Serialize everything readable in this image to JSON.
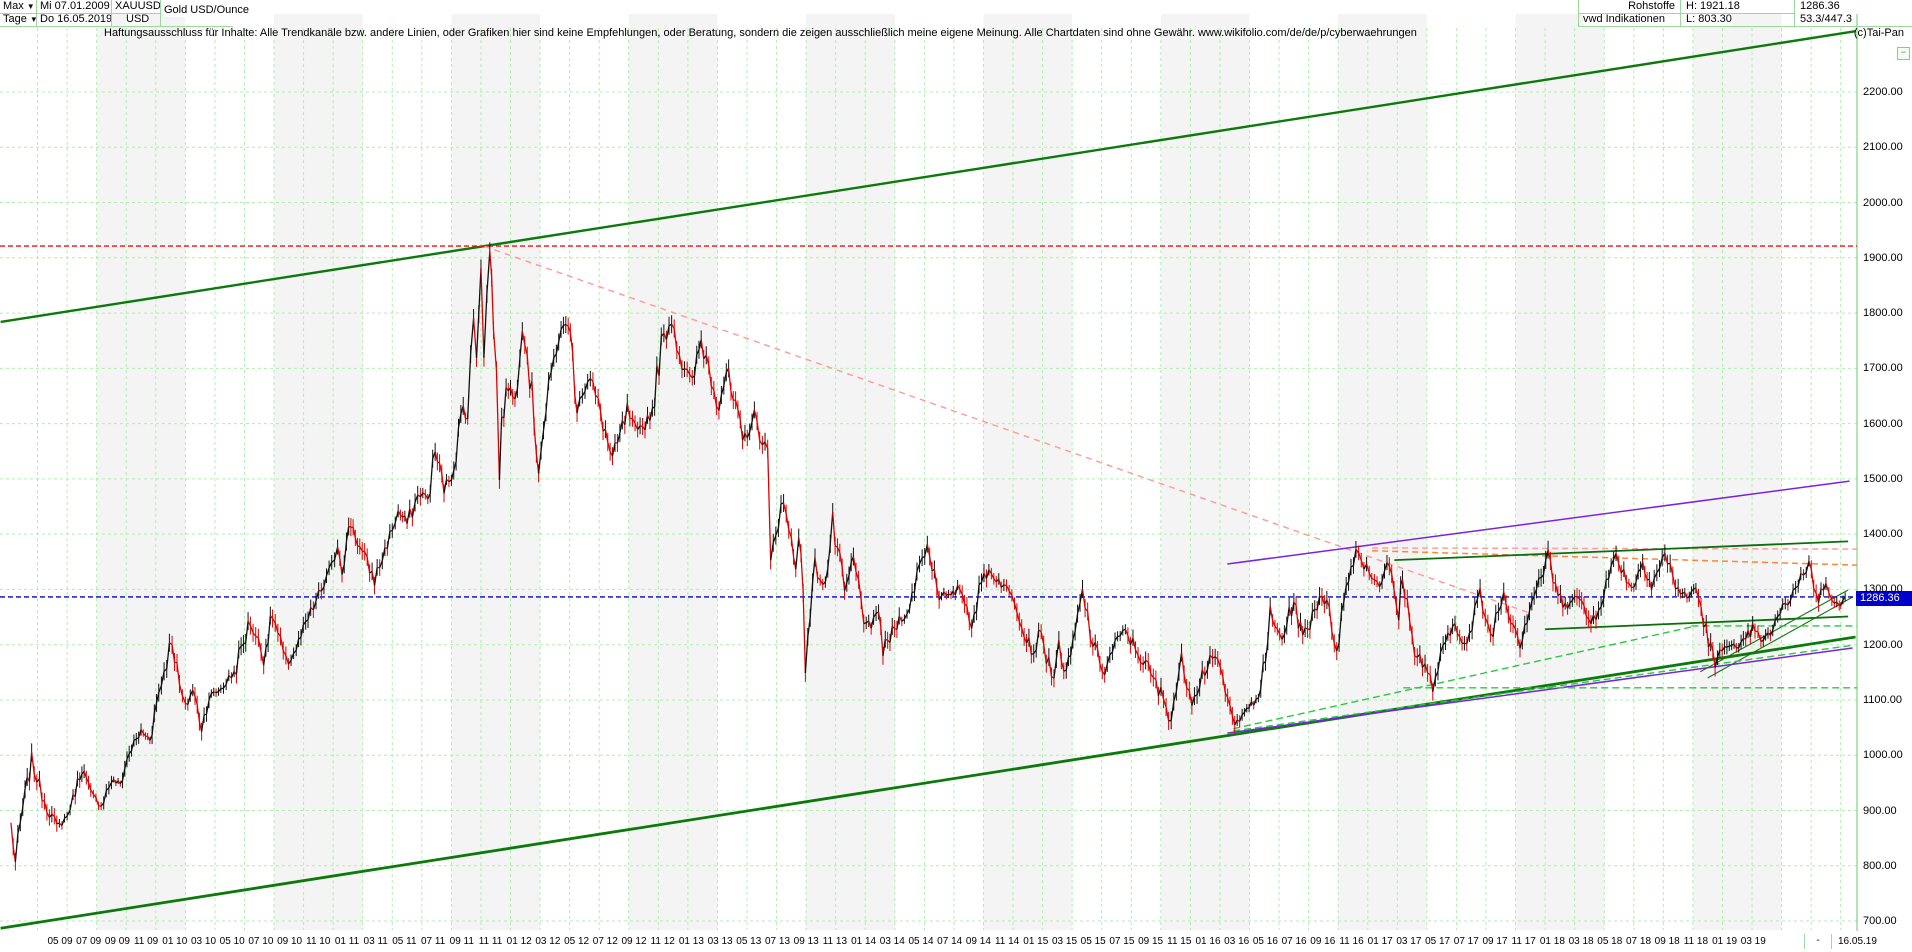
{
  "header": {
    "left": {
      "range": "Max",
      "period": "Tage",
      "date_from": "Mi 07.01.2009",
      "date_to": "Do 16.05.2019",
      "symbol": "XAUUSD",
      "currency": "USD",
      "title": "Gold USD/Ounce"
    },
    "right": {
      "category": "Rohstoffe",
      "source": "vwd Indikationen",
      "high": "H: 1921.18",
      "low": "L: 803.30",
      "last": "1286.36",
      "stats": "53.3/447.3",
      "copyright": "(c)Tai-Pan",
      "legend_toggle": "−"
    }
  },
  "disclaimer": "Haftungsausschluss für Inhalte: Alle Trendkanäle bzw. andere Linien, oder Grafiken hier sind keine Empfehlungen, oder Beratung, sondern die zeigen ausschließlich meine eigene Meinung. Alle Chartdaten sind ohne Gewähr.   www.wikifolio.com/de/de/p/cyberwaehrungen",
  "price_badge": "1286.36",
  "axis": {
    "y_labels": [
      "2200.00",
      "2100.00",
      "2000.00",
      "1900.00",
      "1800.00",
      "1700.00",
      "1600.00",
      "1500.00",
      "1400.00",
      "1300.00",
      "1200.00",
      "1100.00",
      "1000.00",
      "900.00",
      "800.00",
      "700.00"
    ],
    "x_labels": [
      "05 09",
      "07 09",
      "09 09",
      "11 09",
      "01 10",
      "03 10",
      "05 10",
      "07 10",
      "09 10",
      "11 10",
      "01 11",
      "03 11",
      "05 11",
      "07 11",
      "09 11",
      "11 11",
      "01 12",
      "03 12",
      "05 12",
      "07 12",
      "09 12",
      "11 12",
      "01 13",
      "03 13",
      "05 13",
      "07 13",
      "09 13",
      "11 13",
      "01 14",
      "03 14",
      "05 14",
      "07 14",
      "09 14",
      "11 14",
      "01 15",
      "03 15",
      "05 15",
      "07 15",
      "09 15",
      "11 15",
      "01 16",
      "03 16",
      "05 16",
      "07 16",
      "09 16",
      "11 16",
      "01 17",
      "03 17",
      "05 17",
      "07 17",
      "09 17",
      "11 17",
      "01 18",
      "03 18",
      "05 18",
      "07 18",
      "09 18",
      "11 18",
      "01 19",
      "03 19"
    ],
    "minus_label": "-",
    "end_date_label": "16.05.19"
  },
  "chart_data": {
    "type": "line",
    "title": "Gold USD/Ounce",
    "x_unit": "months since Jan 2009",
    "x_range_months": [
      0,
      125.1
    ],
    "ylim": [
      700,
      2200
    ],
    "grid": true,
    "colors": {
      "up": "#111111",
      "down": "#dd0000",
      "grid": "#b4ecb4",
      "axis": "#7fd47f",
      "channel_green": "#0b7a0b",
      "bright_green_dash": "#28c93f",
      "dark_green": "#0a6e0a",
      "purple": "#7a22e0",
      "pink": "#ff9d9d",
      "orange": "#ff8638",
      "red_line": "#ee1111",
      "blue_line": "#0000cc",
      "stripe": "#f4f4f4"
    },
    "horizontal_lines": [
      {
        "name": "all-time-high",
        "price": 1921.18,
        "color": "#ee1111",
        "dash": "5,3",
        "width": 1.4
      },
      {
        "name": "last-price",
        "price": 1286.36,
        "color": "#0000cc",
        "dash": "5,3",
        "width": 1.4
      }
    ],
    "trend_lines": [
      {
        "name": "channel-upper",
        "m1": -0.5,
        "p1": 1784,
        "m2": 125.0,
        "p2": 2310,
        "color": "#0b7a0b",
        "width": 2.4,
        "dash": null
      },
      {
        "name": "channel-lower",
        "m1": -0.5,
        "p1": 687,
        "m2": 125.0,
        "p2": 1214,
        "color": "#0b7a0b",
        "width": 2.8,
        "dash": null
      },
      {
        "name": "peak-decline-dashed",
        "m1": 32.2,
        "p1": 1921,
        "m2": 103.0,
        "p2": 1257,
        "color": "#ff9d9d",
        "width": 1.5,
        "dash": "6,5"
      },
      {
        "name": "resistance-pink-flat",
        "m1": 92.3,
        "p1": 1375,
        "m2": 125.1,
        "p2": 1373,
        "color": "#ff9d9d",
        "width": 1.5,
        "dash": "6,4"
      },
      {
        "name": "resistance-orange",
        "m1": 92.3,
        "p1": 1370,
        "m2": 125.1,
        "p2": 1344,
        "color": "#ff8638",
        "width": 1.5,
        "dash": "6,4"
      },
      {
        "name": "purple-channel-upper",
        "m1": 82.5,
        "p1": 1346,
        "m2": 124.6,
        "p2": 1496,
        "color": "#7a22e0",
        "width": 1.5,
        "dash": null
      },
      {
        "name": "purple-channel-lower",
        "m1": 82.5,
        "p1": 1040,
        "m2": 124.8,
        "p2": 1194,
        "color": "#7a22e0",
        "width": 1.5,
        "dash": null
      },
      {
        "name": "green-resistance-2018",
        "m1": 93.8,
        "p1": 1353,
        "m2": 124.5,
        "p2": 1387,
        "color": "#0a6e0a",
        "width": 1.8,
        "dash": null
      },
      {
        "name": "green-support-2018",
        "m1": 104.0,
        "p1": 1228,
        "m2": 124.5,
        "p2": 1251,
        "color": "#0a6e0a",
        "width": 1.8,
        "dash": null
      },
      {
        "name": "steep-channel-a",
        "m1": 114.5,
        "p1": 1151,
        "m2": 124.5,
        "p2": 1299,
        "color": "#117711",
        "width": 1.1,
        "dash": null
      },
      {
        "name": "steep-channel-b",
        "m1": 115.0,
        "p1": 1140,
        "m2": 124.8,
        "p2": 1286,
        "color": "#117711",
        "width": 1.1,
        "dash": null
      },
      {
        "name": "dashed-ray-from-2015-low",
        "m1": 82.9,
        "p1": 1048,
        "m2": 113.9,
        "p2": 1232,
        "color": "#28c93f",
        "width": 1.4,
        "dash": "7,4"
      },
      {
        "name": "dashed-ray-shallow",
        "m1": 82.9,
        "p1": 1044,
        "m2": 124.8,
        "p2": 1199,
        "color": "#28c93f",
        "width": 1.4,
        "dash": "7,4"
      },
      {
        "name": "dashed-support-1234",
        "m1": 113.9,
        "p1": 1234,
        "m2": 125.1,
        "p2": 1234,
        "color": "#28c93f",
        "width": 1.4,
        "dash": "7,4"
      },
      {
        "name": "dashed-support-1122",
        "m1": 94.4,
        "p1": 1122,
        "m2": 125.1,
        "p2": 1122,
        "color": "#28c93f",
        "width": 1.4,
        "dash": "7,4"
      }
    ],
    "series": {
      "name": "XAUUSD daily close (anchor points)",
      "anchors": [
        [
          0.2,
          875
        ],
        [
          0.5,
          806
        ],
        [
          1.0,
          905
        ],
        [
          1.6,
          988
        ],
        [
          2.3,
          930
        ],
        [
          3.3,
          868
        ],
        [
          4.0,
          890
        ],
        [
          4.4,
          922
        ],
        [
          5.0,
          978
        ],
        [
          5.6,
          930
        ],
        [
          6.3,
          910
        ],
        [
          7.0,
          955
        ],
        [
          7.6,
          948
        ],
        [
          8.2,
          1005
        ],
        [
          9.0,
          1042
        ],
        [
          9.6,
          1030
        ],
        [
          10.2,
          1115
        ],
        [
          11.1,
          1212
        ],
        [
          11.6,
          1125
        ],
        [
          12.0,
          1085
        ],
        [
          12.5,
          1120
        ],
        [
          13.1,
          1052
        ],
        [
          13.6,
          1105
        ],
        [
          14.4,
          1120
        ],
        [
          15.3,
          1150
        ],
        [
          16.4,
          1243
        ],
        [
          17.3,
          1178
        ],
        [
          17.9,
          1255
        ],
        [
          18.8,
          1162
        ],
        [
          19.5,
          1192
        ],
        [
          20.3,
          1245
        ],
        [
          21.2,
          1298
        ],
        [
          21.9,
          1340
        ],
        [
          22.3,
          1383
        ],
        [
          22.6,
          1338
        ],
        [
          23.2,
          1423
        ],
        [
          23.8,
          1375
        ],
        [
          24.8,
          1318
        ],
        [
          25.5,
          1370
        ],
        [
          26.0,
          1410
        ],
        [
          26.4,
          1440
        ],
        [
          27.0,
          1420
        ],
        [
          27.9,
          1478
        ],
        [
          28.4,
          1462
        ],
        [
          28.9,
          1550
        ],
        [
          29.5,
          1485
        ],
        [
          30.0,
          1505
        ],
        [
          30.8,
          1628
        ],
        [
          31.1,
          1610
        ],
        [
          31.5,
          1795
        ],
        [
          31.7,
          1730
        ],
        [
          32.0,
          1905
        ],
        [
          32.2,
          1712
        ],
        [
          32.4,
          1830
        ],
        [
          32.6,
          1920
        ],
        [
          32.85,
          1790
        ],
        [
          33.25,
          1535
        ],
        [
          33.7,
          1680
        ],
        [
          34.3,
          1640
        ],
        [
          34.8,
          1800
        ],
        [
          35.3,
          1685
        ],
        [
          35.9,
          1528
        ],
        [
          36.4,
          1620
        ],
        [
          37.1,
          1745
        ],
        [
          37.9,
          1788
        ],
        [
          38.5,
          1642
        ],
        [
          39.4,
          1680
        ],
        [
          40.1,
          1620
        ],
        [
          40.9,
          1530
        ],
        [
          41.9,
          1620
        ],
        [
          42.6,
          1578
        ],
        [
          43.6,
          1625
        ],
        [
          44.2,
          1740
        ],
        [
          44.9,
          1792
        ],
        [
          45.6,
          1710
        ],
        [
          46.3,
          1672
        ],
        [
          46.9,
          1752
        ],
        [
          48.1,
          1640
        ],
        [
          48.6,
          1692
        ],
        [
          49.7,
          1567
        ],
        [
          50.5,
          1613
        ],
        [
          51.4,
          1545
        ],
        [
          51.6,
          1335
        ],
        [
          52.3,
          1470
        ],
        [
          53.0,
          1390
        ],
        [
          53.3,
          1342
        ],
        [
          53.5,
          1410
        ],
        [
          53.95,
          1182
        ],
        [
          54.6,
          1335
        ],
        [
          55.3,
          1310
        ],
        [
          55.8,
          1418
        ],
        [
          56.6,
          1290
        ],
        [
          57.2,
          1355
        ],
        [
          57.9,
          1255
        ],
        [
          58.4,
          1222
        ],
        [
          58.9,
          1268
        ],
        [
          59.2,
          1188
        ],
        [
          60.3,
          1245
        ],
        [
          61.0,
          1262
        ],
        [
          61.5,
          1330
        ],
        [
          62.2,
          1382
        ],
        [
          63.0,
          1295
        ],
        [
          63.8,
          1285
        ],
        [
          64.4,
          1305
        ],
        [
          65.2,
          1242
        ],
        [
          66.2,
          1338
        ],
        [
          67.2,
          1312
        ],
        [
          68.1,
          1282
        ],
        [
          69.4,
          1186
        ],
        [
          69.9,
          1232
        ],
        [
          70.6,
          1132
        ],
        [
          71.1,
          1198
        ],
        [
          71.6,
          1142
        ],
        [
          72.2,
          1220
        ],
        [
          72.7,
          1295
        ],
        [
          73.4,
          1202
        ],
        [
          74.2,
          1150
        ],
        [
          74.9,
          1203
        ],
        [
          75.6,
          1225
        ],
        [
          76.8,
          1170
        ],
        [
          78.7,
          1073
        ],
        [
          79.4,
          1168
        ],
        [
          80.1,
          1104
        ],
        [
          81.5,
          1188
        ],
        [
          82.2,
          1135
        ],
        [
          83.0,
          1048
        ],
        [
          83.5,
          1082
        ],
        [
          84.6,
          1098
        ],
        [
          85.4,
          1246
        ],
        [
          86.2,
          1212
        ],
        [
          87.0,
          1280
        ],
        [
          87.6,
          1210
        ],
        [
          88.9,
          1300
        ],
        [
          89.9,
          1200
        ],
        [
          90.7,
          1322
        ],
        [
          91.2,
          1373
        ],
        [
          92.1,
          1332
        ],
        [
          92.8,
          1308
        ],
        [
          93.3,
          1352
        ],
        [
          94.1,
          1252
        ],
        [
          94.35,
          1332
        ],
        [
          95.0,
          1208
        ],
        [
          96.4,
          1124
        ],
        [
          97.1,
          1190
        ],
        [
          97.9,
          1240
        ],
        [
          98.7,
          1196
        ],
        [
          99.6,
          1290
        ],
        [
          100.3,
          1216
        ],
        [
          101.2,
          1294
        ],
        [
          102.3,
          1206
        ],
        [
          103.1,
          1282
        ],
        [
          104.2,
          1356
        ],
        [
          105.2,
          1262
        ],
        [
          106.0,
          1296
        ],
        [
          107.1,
          1238
        ],
        [
          108.3,
          1320
        ],
        [
          108.8,
          1365
        ],
        [
          109.5,
          1318
        ],
        [
          110.0,
          1304
        ],
        [
          110.6,
          1352
        ],
        [
          111.2,
          1308
        ],
        [
          112.1,
          1362
        ],
        [
          113.0,
          1300
        ],
        [
          113.6,
          1284
        ],
        [
          114.2,
          1304
        ],
        [
          114.9,
          1225
        ],
        [
          115.5,
          1162
        ],
        [
          116.3,
          1208
        ],
        [
          117.1,
          1188
        ],
        [
          118.2,
          1234
        ],
        [
          118.6,
          1200
        ],
        [
          119.4,
          1228
        ],
        [
          119.9,
          1258
        ],
        [
          120.6,
          1286
        ],
        [
          121.3,
          1322
        ],
        [
          121.85,
          1346
        ],
        [
          122.5,
          1282
        ],
        [
          123.0,
          1315
        ],
        [
          123.4,
          1288
        ],
        [
          123.9,
          1267
        ],
        [
          124.0,
          1272
        ],
        [
          124.3,
          1286.36
        ]
      ]
    }
  }
}
